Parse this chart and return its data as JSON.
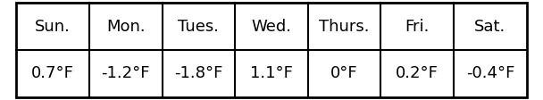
{
  "headers": [
    "Sun.",
    "Mon.",
    "Tues.",
    "Wed.",
    "Thurs.",
    "Fri.",
    "Sat."
  ],
  "values": [
    "0.7°F",
    "-1.2°F",
    "-1.8°F",
    "1.1°F",
    "0°F",
    "0.2°F",
    "-0.4°F"
  ],
  "bg_color": "#ffffff",
  "border_color": "#000000",
  "header_fontsize": 13,
  "value_fontsize": 13,
  "fig_width": 6.08,
  "fig_height": 1.12,
  "outer_border_lw": 2.0,
  "inner_border_lw": 1.5
}
